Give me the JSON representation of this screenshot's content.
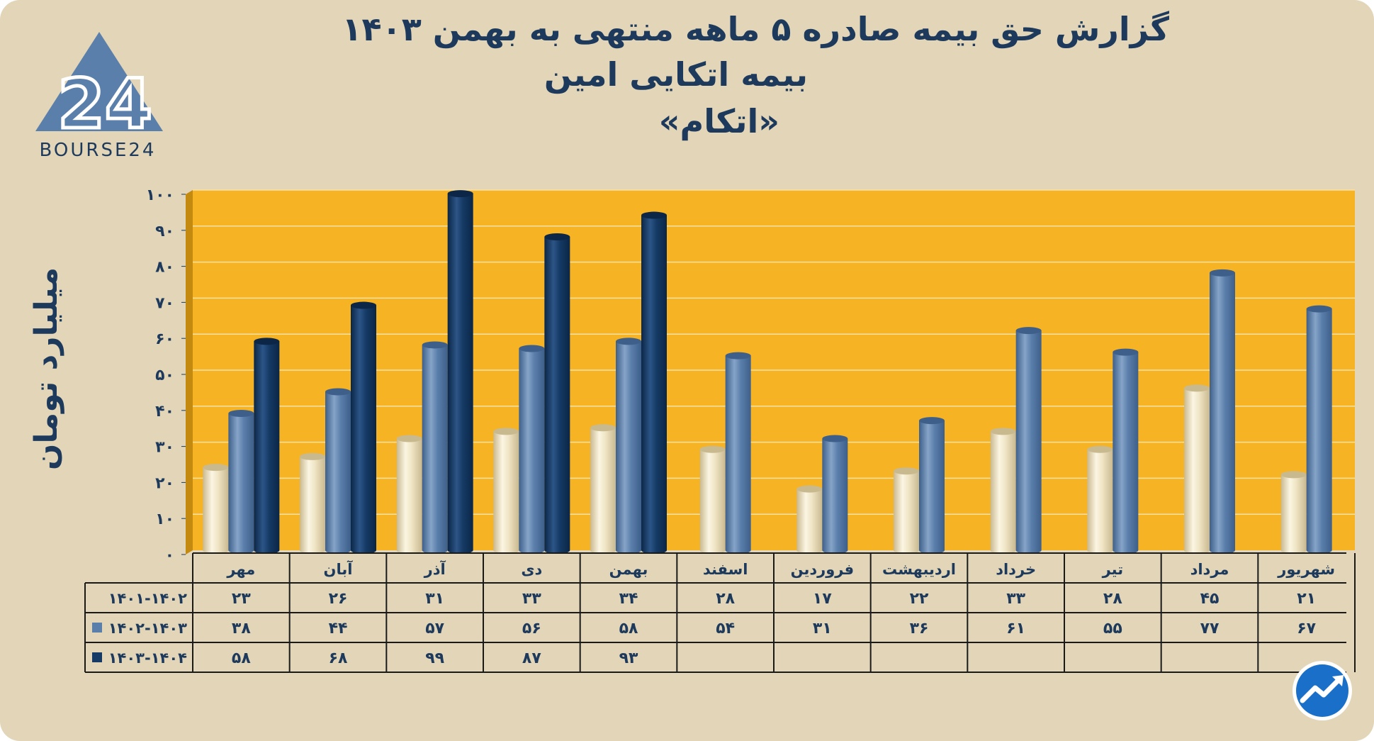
{
  "title": {
    "line1": "گزارش  حق بیمه صادره ۵ ماهه منتهی به بهمن ۱۴۰۳",
    "line2": "بیمه اتکایی امین",
    "line3": "«اتکام»"
  },
  "logo": {
    "text": "BOURSE24",
    "mark": "24"
  },
  "colors": {
    "background": "#e2d5b8",
    "plot_area": "#f6b323",
    "series_1401_1402": "#efe4c4",
    "series_1402_1403": "#5b7fab",
    "series_1403_1404": "#153a65",
    "text": "#1d3a5c"
  },
  "chart_data": {
    "type": "bar",
    "title": "گزارش  حق بیمه صادره ۵ ماهه منتهی به بهمن ۱۴۰۳",
    "subtitle": "بیمه اتکایی امین «اتکام»",
    "ylabel": "میلیارد تومان",
    "xlabel": "",
    "ylim": [
      0,
      100
    ],
    "yticks": [
      0,
      10,
      20,
      30,
      40,
      50,
      60,
      70,
      80,
      90,
      100
    ],
    "ytick_labels": [
      "۰",
      "۱۰",
      "۲۰",
      "۳۰",
      "۴۰",
      "۵۰",
      "۶۰",
      "۷۰",
      "۸۰",
      "۹۰",
      "۱۰۰"
    ],
    "categories": [
      "مهر",
      "آبان",
      "آذر",
      "دی",
      "بهمن",
      "اسفند",
      "فروردین",
      "اردیبهشت",
      "خرداد",
      "تیر",
      "مرداد",
      "شهریور"
    ],
    "grid": true,
    "legend": "table-below",
    "series": [
      {
        "name": "۱۴۰۱-۱۴۰۲",
        "values": [
          23,
          26,
          31,
          33,
          34,
          28,
          17,
          22,
          33,
          28,
          45,
          21
        ],
        "labels": [
          "۲۳",
          "۲۶",
          "۳۱",
          "۳۳",
          "۳۴",
          "۲۸",
          "۱۷",
          "۲۲",
          "۳۳",
          "۲۸",
          "۴۵",
          "۲۱"
        ]
      },
      {
        "name": "۱۴۰۲-۱۴۰۳",
        "values": [
          38,
          44,
          57,
          56,
          58,
          54,
          31,
          36,
          61,
          55,
          77,
          67
        ],
        "labels": [
          "۳۸",
          "۴۴",
          "۵۷",
          "۵۶",
          "۵۸",
          "۵۴",
          "۳۱",
          "۳۶",
          "۶۱",
          "۵۵",
          "۷۷",
          "۶۷"
        ]
      },
      {
        "name": "۱۴۰۳-۱۴۰۴",
        "values": [
          58,
          68,
          99,
          87,
          93,
          null,
          null,
          null,
          null,
          null,
          null,
          null
        ],
        "labels": [
          "۵۸",
          "۶۸",
          "۹۹",
          "۸۷",
          "۹۳",
          "",
          "",
          "",
          "",
          "",
          "",
          ""
        ]
      }
    ]
  }
}
